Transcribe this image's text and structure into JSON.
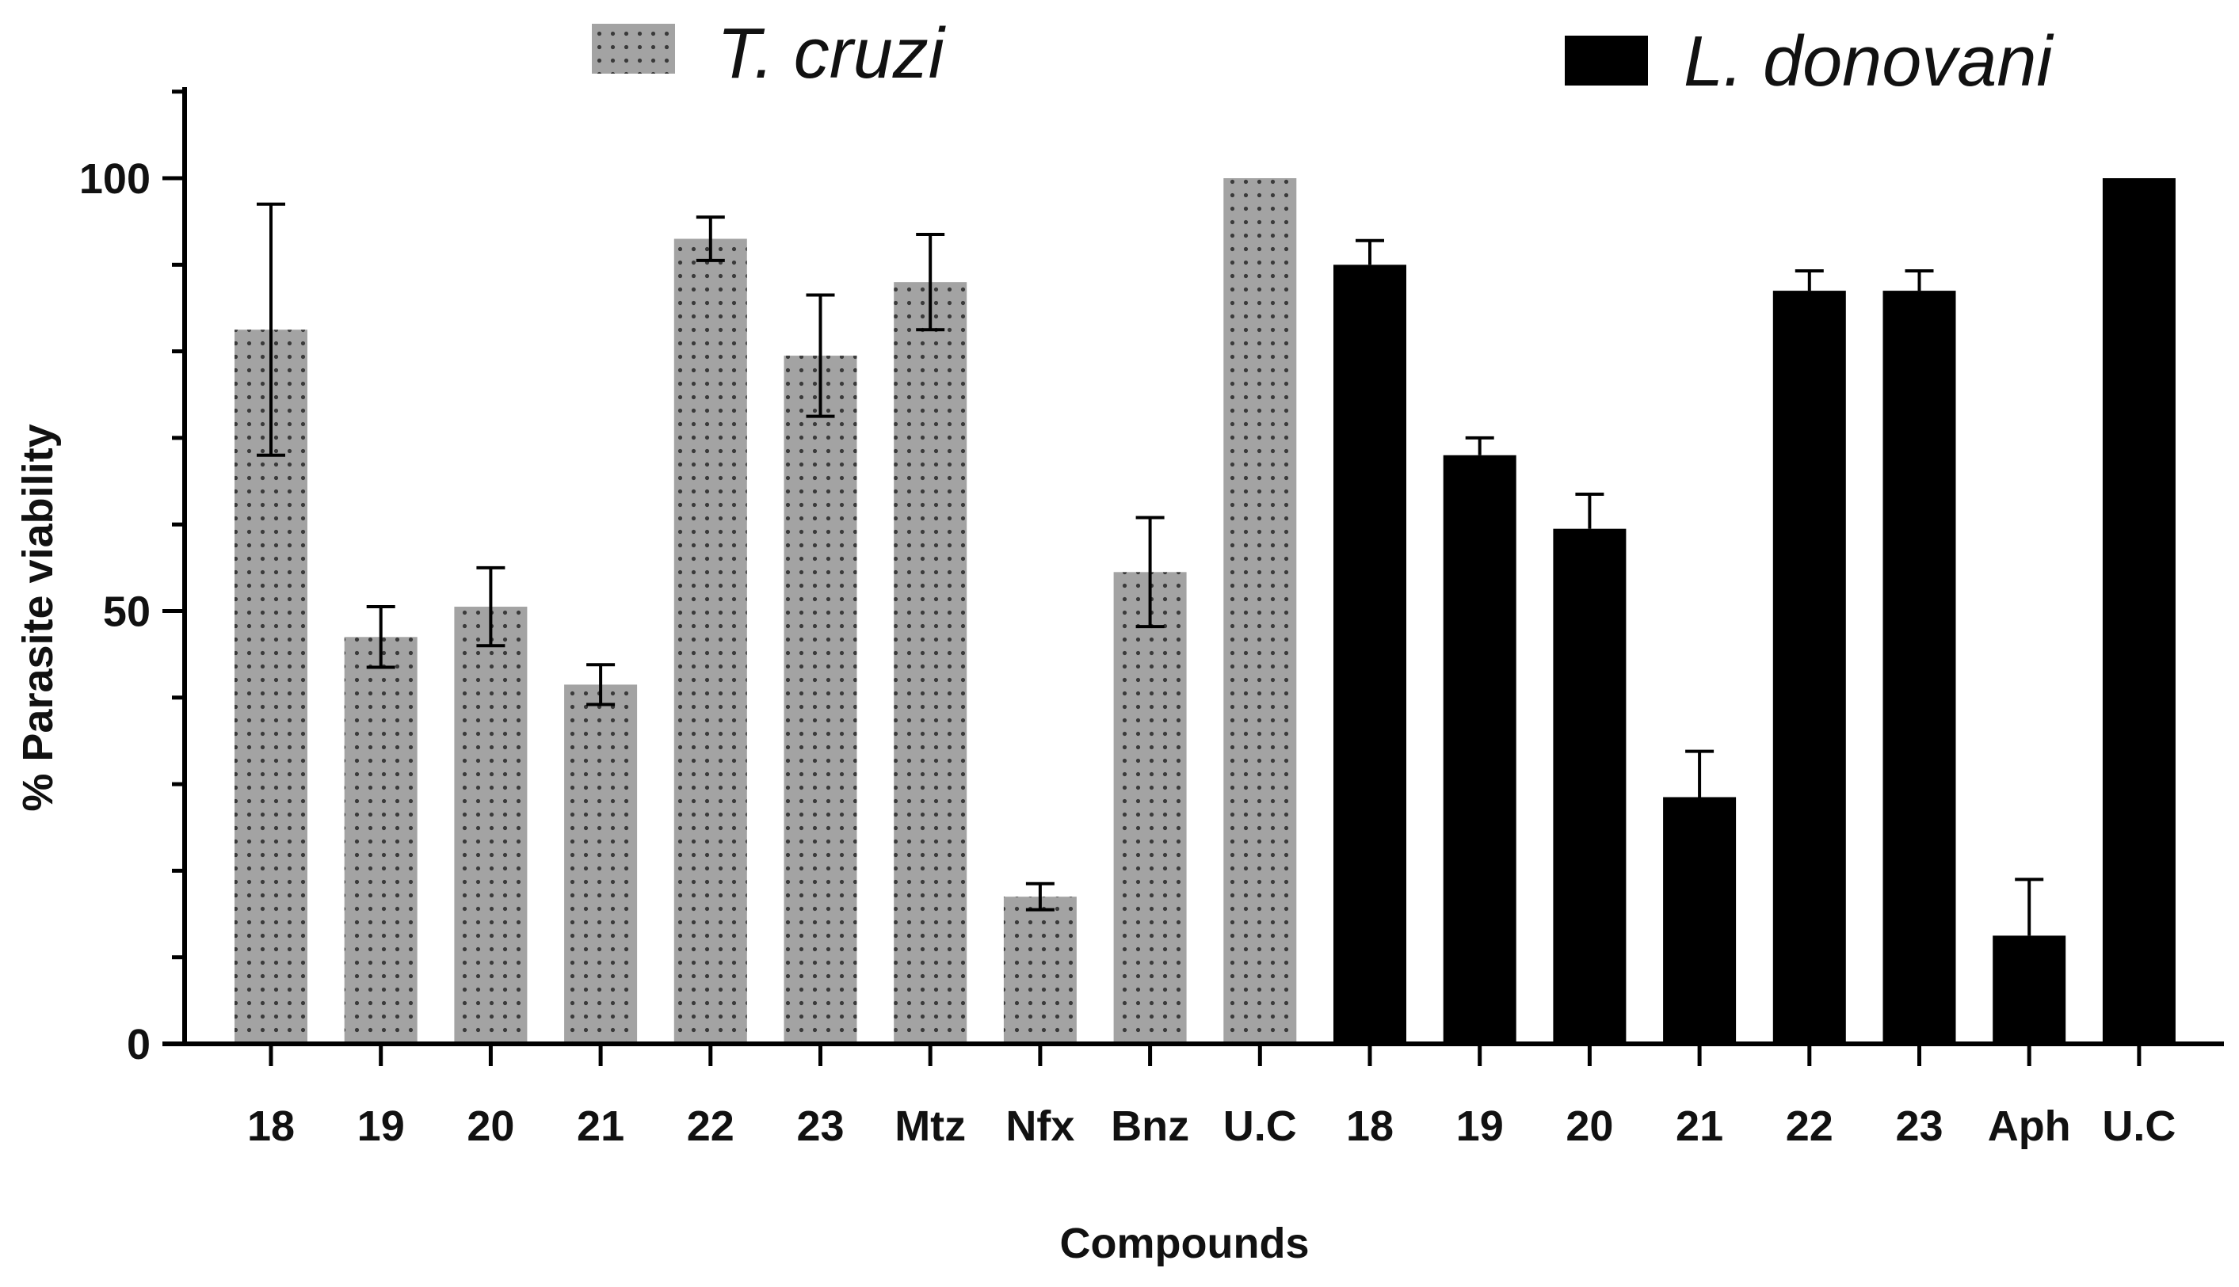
{
  "chart_data": {
    "type": "bar",
    "title": "",
    "xlabel": "Compounds",
    "ylabel": "% Parasite viability",
    "ylim": [
      0,
      110
    ],
    "yticks": [
      0,
      50,
      100
    ],
    "grid": false,
    "legend_position": "top",
    "series": [
      {
        "name": "T. cruzi",
        "color": "#a3a3a3",
        "pattern": "dotted",
        "categories": [
          "18",
          "19",
          "20",
          "21",
          "22",
          "23",
          "Mtz",
          "Nfx",
          "Bnz",
          "U.C"
        ],
        "values": [
          82.5,
          47,
          50.5,
          41.5,
          93,
          79.5,
          88,
          17,
          54.5,
          100
        ],
        "errors": [
          14.5,
          3.5,
          4.5,
          2.3,
          2.5,
          7,
          5.5,
          1.5,
          6.3,
          0
        ]
      },
      {
        "name": "L. donovani",
        "color": "#000000",
        "pattern": "solid",
        "categories": [
          "18",
          "19",
          "20",
          "21",
          "22",
          "23",
          "Aph",
          "U.C"
        ],
        "values": [
          90,
          68,
          59.5,
          28.5,
          87,
          87,
          12.5,
          100
        ],
        "errors": [
          2.8,
          2,
          4,
          5.3,
          2.3,
          2.3,
          6.5,
          0
        ]
      }
    ]
  }
}
